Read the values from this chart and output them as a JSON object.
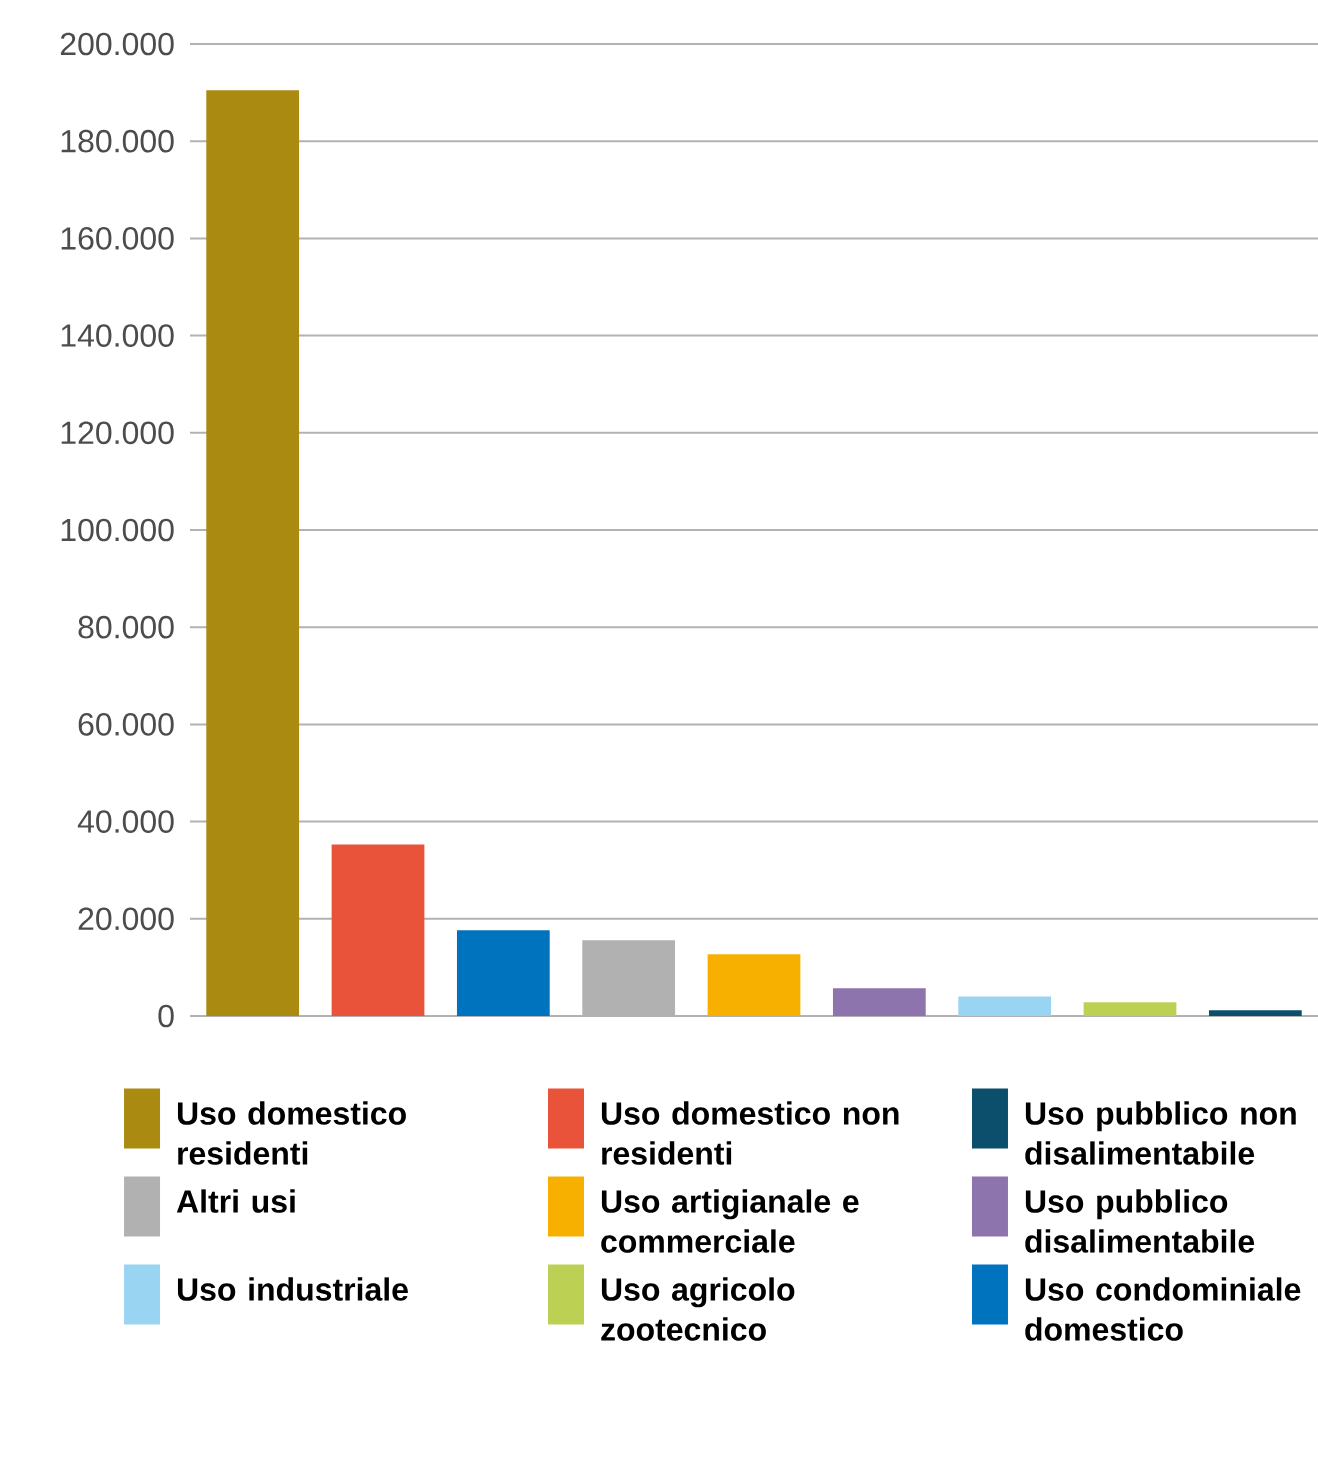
{
  "chart_data": {
    "type": "bar",
    "categories": [
      null,
      null,
      null,
      null,
      null,
      null,
      null,
      null,
      null
    ],
    "series": [
      {
        "name": "Uso domestico residenti",
        "color": "#aa8a10",
        "values": [
          190500,
          null,
          null,
          null,
          null,
          null,
          null,
          null,
          null
        ]
      },
      {
        "name": "Uso domestico non residenti",
        "color": "#e8533a",
        "values": [
          null,
          35300,
          null,
          null,
          null,
          null,
          null,
          null,
          null
        ]
      },
      {
        "name": "Uso pubblico non disalimentabile",
        "color": "#0b4f6c",
        "values": [
          null,
          null,
          null,
          null,
          null,
          null,
          null,
          null,
          1200
        ]
      },
      {
        "name": "Altri usi",
        "color": "#b1b1b1",
        "values": [
          null,
          null,
          null,
          15600,
          null,
          null,
          null,
          null,
          null
        ]
      },
      {
        "name": "Uso artigianale e commerciale",
        "color": "#f7b000",
        "values": [
          null,
          null,
          null,
          null,
          12700,
          null,
          null,
          null,
          null
        ]
      },
      {
        "name": "Uso pubblico disalimentabile",
        "color": "#8e74ad",
        "values": [
          null,
          null,
          null,
          null,
          null,
          5700,
          null,
          null,
          null
        ]
      },
      {
        "name": "Uso industriale",
        "color": "#99d4f2",
        "values": [
          null,
          null,
          null,
          null,
          null,
          null,
          4000,
          null,
          null
        ]
      },
      {
        "name": "Uso agricolo zootecnico",
        "color": "#bcd154",
        "values": [
          null,
          null,
          null,
          null,
          null,
          null,
          null,
          2850,
          null
        ]
      },
      {
        "name": "Uso condominiale domestico",
        "color": "#0073bf",
        "values": [
          null,
          null,
          17650,
          null,
          null,
          null,
          null,
          null,
          null
        ]
      }
    ],
    "ylim": [
      0,
      200000
    ],
    "yticks": [
      0,
      {
        "value": 20000,
        "label": "20.000"
      },
      {
        "value": 40000,
        "label": "40.000"
      },
      {
        "value": 60000,
        "label": "60.000"
      },
      {
        "value": 80000,
        "label": "80.000"
      },
      {
        "value": 100000,
        "label": "100.000"
      },
      {
        "value": 120000,
        "label": "120.000"
      },
      {
        "value": 140000,
        "label": "140.000"
      },
      {
        "value": 160000,
        "label": "160.000"
      },
      {
        "value": 180000,
        "label": "180.000"
      },
      {
        "value": 200000,
        "label": "200.000"
      }
    ],
    "grid": "y",
    "legend": "bottom",
    "tick_labels": "y"
  }
}
